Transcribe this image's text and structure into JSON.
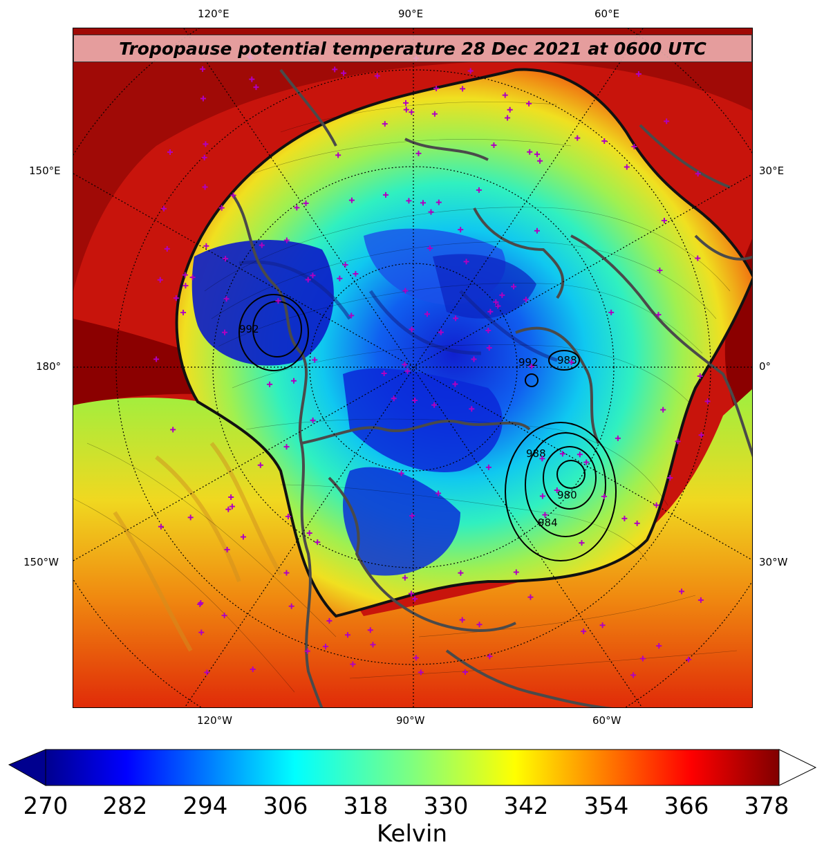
{
  "map": {
    "title": "Tropopause potential temperature 28 Dec 2021 at 0600 UTC",
    "projection": "north-polar-stereographic",
    "top_labels": [
      "120°E",
      "90°E",
      "60°E"
    ],
    "bottom_labels": [
      "120°W",
      "90°W",
      "60°W"
    ],
    "left_labels": [
      "150°E",
      "180°",
      "150°W"
    ],
    "right_labels": [
      "30°E",
      "0°",
      "30°W"
    ],
    "contour_labels": [
      "992",
      "988",
      "992",
      "988",
      "988",
      "980",
      "984",
      "992",
      "984"
    ],
    "colors": {
      "ocean_warm": "#8b0000",
      "coastline": "#4a4a4a",
      "station_marker": "#b000c0",
      "contour": "#000000"
    }
  },
  "colorbar": {
    "ticks": [
      "270",
      "282",
      "294",
      "306",
      "318",
      "330",
      "342",
      "354",
      "366",
      "378"
    ],
    "label": "Kelvin",
    "colormap": "jet",
    "extend": "both"
  }
}
